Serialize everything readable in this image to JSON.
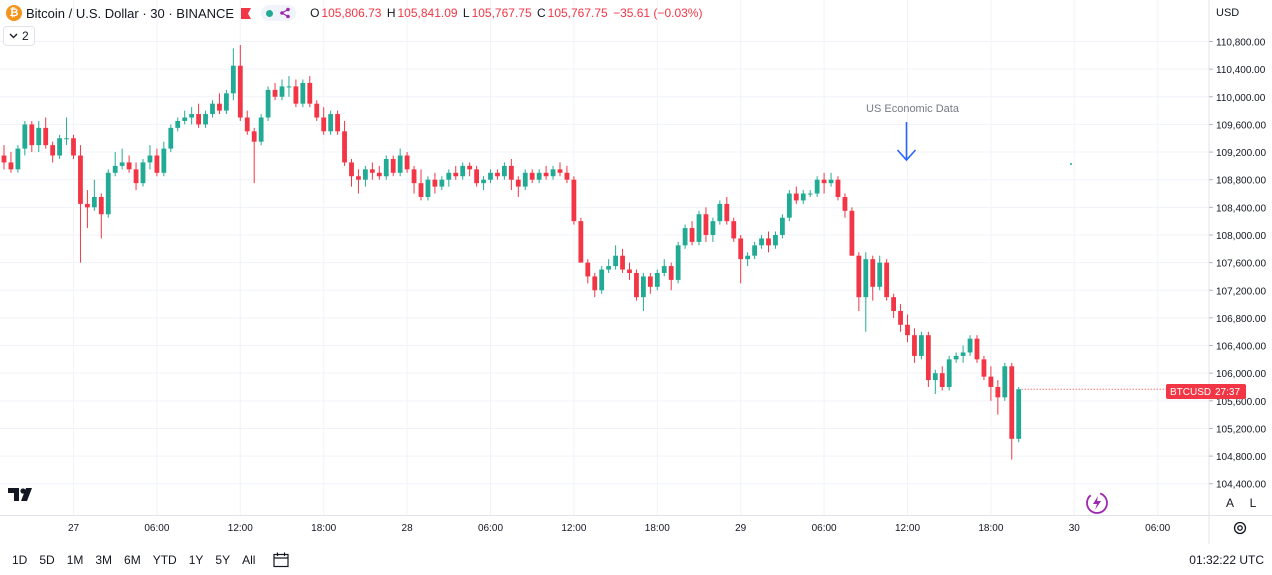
{
  "header": {
    "symbol_title": "Bitcoin / U.S. Dollar · 30 · BINANCE",
    "logo_glyph": "₿",
    "ohlc": {
      "open_key": "O",
      "open": "105,806.73",
      "high_key": "H",
      "high": "105,841.09",
      "low_key": "L",
      "low": "105,767.75",
      "close_key": "C",
      "close": "105,767.75",
      "change": "−35.61 (−0.03%)"
    },
    "indicator_toggle": "2",
    "currency": "USD"
  },
  "colors": {
    "up": "#22ab94",
    "down": "#f23645",
    "grid": "#f0f3fa",
    "annotation": "#2962ff",
    "annotation_text": "#787b86"
  },
  "price_tag": {
    "symbol": "BTCUSD",
    "countdown": "27:37"
  },
  "annotation": {
    "text": "US Economic Data"
  },
  "bottom_bar": {
    "ranges": [
      "1D",
      "5D",
      "1M",
      "3M",
      "6M",
      "YTD",
      "1Y",
      "5Y",
      "All"
    ],
    "clock": "01:32:22 UTC"
  },
  "scale_buttons": {
    "auto": "A",
    "log": "L"
  },
  "chart_data": {
    "type": "candlestick",
    "interval": "30m",
    "y_axis": {
      "min": 104400,
      "max": 111000,
      "ticks": [
        104400,
        104800,
        105200,
        105600,
        106000,
        106400,
        106800,
        107200,
        107600,
        108000,
        108400,
        108800,
        109200,
        109600,
        110000,
        110400,
        110800
      ],
      "tick_labels": [
        "104,400.00",
        "104,800.00",
        "105,200.00",
        "105,600.00",
        "106,000.00",
        "106,400.00",
        "106,800.00",
        "107,200.00",
        "107,600.00",
        "108,000.00",
        "108,400.00",
        "108,800.00",
        "109,200.00",
        "109,600.00",
        "110,000.00",
        "110,400.00",
        "110,800.00"
      ]
    },
    "x_axis": {
      "ticks": [
        {
          "label": "27",
          "index": 10
        },
        {
          "label": "06:00",
          "index": 22
        },
        {
          "label": "12:00",
          "index": 34
        },
        {
          "label": "18:00",
          "index": 46
        },
        {
          "label": "28",
          "index": 58
        },
        {
          "label": "06:00",
          "index": 70
        },
        {
          "label": "12:00",
          "index": 82
        },
        {
          "label": "18:00",
          "index": 94
        },
        {
          "label": "29",
          "index": 106
        },
        {
          "label": "06:00",
          "index": 118
        },
        {
          "label": "12:00",
          "index": 130
        },
        {
          "label": "18:00",
          "index": 142
        },
        {
          "label": "30",
          "index": 154
        },
        {
          "label": "06:00",
          "index": 166
        }
      ]
    },
    "annotation_index": 130,
    "last_price": 105767.75,
    "candles": [
      [
        109150,
        109300,
        108950,
        109050
      ],
      [
        109050,
        109200,
        108900,
        108950
      ],
      [
        108950,
        109300,
        108900,
        109250
      ],
      [
        109250,
        109650,
        109150,
        109600
      ],
      [
        109600,
        109650,
        109200,
        109300
      ],
      [
        109300,
        109650,
        109200,
        109550
      ],
      [
        109550,
        109700,
        109250,
        109300
      ],
      [
        109300,
        109350,
        109050,
        109150
      ],
      [
        109150,
        109450,
        109100,
        109400
      ],
      [
        109400,
        109700,
        109300,
        109400
      ],
      [
        109400,
        109450,
        109100,
        109150
      ],
      [
        109150,
        109300,
        107600,
        108450
      ],
      [
        108450,
        108650,
        108100,
        108400
      ],
      [
        108400,
        108800,
        108350,
        108550
      ],
      [
        108550,
        108600,
        107950,
        108300
      ],
      [
        108300,
        108950,
        108250,
        108900
      ],
      [
        108900,
        109200,
        108850,
        109000
      ],
      [
        109000,
        109250,
        108950,
        109050
      ],
      [
        109050,
        109150,
        108900,
        108950
      ],
      [
        108950,
        109050,
        108650,
        108750
      ],
      [
        108750,
        109100,
        108700,
        109050
      ],
      [
        109050,
        109300,
        108950,
        109150
      ],
      [
        109150,
        109250,
        108850,
        108900
      ],
      [
        108900,
        109350,
        108850,
        109250
      ],
      [
        109250,
        109600,
        109200,
        109550
      ],
      [
        109550,
        109700,
        109500,
        109650
      ],
      [
        109650,
        109800,
        109600,
        109700
      ],
      [
        109700,
        109850,
        109600,
        109750
      ],
      [
        109750,
        109900,
        109550,
        109600
      ],
      [
        109600,
        109800,
        109550,
        109750
      ],
      [
        109750,
        109950,
        109700,
        109900
      ],
      [
        109900,
        110050,
        109750,
        109800
      ],
      [
        109800,
        110100,
        109750,
        110050
      ],
      [
        110050,
        110700,
        109950,
        110450
      ],
      [
        110450,
        110750,
        109650,
        109700
      ],
      [
        109700,
        109800,
        109450,
        109500
      ],
      [
        109500,
        109550,
        108750,
        109350
      ],
      [
        109350,
        109750,
        109300,
        109700
      ],
      [
        109700,
        110150,
        109650,
        110100
      ],
      [
        110100,
        110200,
        109950,
        110000
      ],
      [
        110000,
        110250,
        109950,
        110150
      ],
      [
        110150,
        110300,
        110000,
        110150
      ],
      [
        110150,
        110250,
        109850,
        109900
      ],
      [
        109900,
        110250,
        109850,
        110200
      ],
      [
        110200,
        110300,
        109850,
        109900
      ],
      [
        109900,
        109950,
        109650,
        109700
      ],
      [
        109700,
        109850,
        109450,
        109500
      ],
      [
        109500,
        109800,
        109450,
        109750
      ],
      [
        109750,
        109800,
        109450,
        109500
      ],
      [
        109500,
        109650,
        109000,
        109050
      ],
      [
        109050,
        109100,
        108700,
        108850
      ],
      [
        108850,
        108950,
        108600,
        108800
      ],
      [
        108800,
        109000,
        108700,
        108950
      ],
      [
        108950,
        109050,
        108800,
        108900
      ],
      [
        108900,
        109000,
        108800,
        108850
      ],
      [
        108850,
        109150,
        108800,
        109100
      ],
      [
        109100,
        109150,
        108850,
        108900
      ],
      [
        108900,
        109250,
        108850,
        109150
      ],
      [
        109150,
        109200,
        108900,
        108950
      ],
      [
        108950,
        109000,
        108600,
        108750
      ],
      [
        108750,
        108950,
        108500,
        108550
      ],
      [
        108550,
        108850,
        108500,
        108800
      ],
      [
        108800,
        108900,
        108600,
        108700
      ],
      [
        108700,
        108850,
        108650,
        108800
      ],
      [
        108800,
        108950,
        108700,
        108900
      ],
      [
        108900,
        109000,
        108800,
        108850
      ],
      [
        108850,
        109050,
        108800,
        109000
      ],
      [
        109000,
        109050,
        108850,
        108950
      ],
      [
        108950,
        109000,
        108700,
        108750
      ],
      [
        108750,
        108850,
        108650,
        108800
      ],
      [
        108800,
        108950,
        108750,
        108900
      ],
      [
        108900,
        108950,
        108800,
        108850
      ],
      [
        108850,
        109050,
        108800,
        109000
      ],
      [
        109000,
        109100,
        108650,
        108800
      ],
      [
        108800,
        108850,
        108550,
        108700
      ],
      [
        108700,
        108950,
        108650,
        108900
      ],
      [
        108900,
        108950,
        108750,
        108800
      ],
      [
        108800,
        108950,
        108750,
        108900
      ],
      [
        108900,
        109000,
        108800,
        108850
      ],
      [
        108850,
        109000,
        108800,
        108950
      ],
      [
        108950,
        109050,
        108850,
        108900
      ],
      [
        108900,
        109000,
        108750,
        108800
      ],
      [
        108800,
        108850,
        108150,
        108200
      ],
      [
        108200,
        108250,
        107600,
        107600
      ],
      [
        107600,
        107650,
        107300,
        107400
      ],
      [
        107400,
        107450,
        107100,
        107200
      ],
      [
        107200,
        107550,
        107150,
        107500
      ],
      [
        107500,
        107650,
        107450,
        107550
      ],
      [
        107550,
        107850,
        107500,
        107700
      ],
      [
        107700,
        107800,
        107450,
        107500
      ],
      [
        107500,
        107600,
        107350,
        107450
      ],
      [
        107450,
        107500,
        107050,
        107100
      ],
      [
        107100,
        107450,
        106900,
        107400
      ],
      [
        107400,
        107450,
        107150,
        107250
      ],
      [
        107250,
        107500,
        107200,
        107450
      ],
      [
        107450,
        107650,
        107400,
        107550
      ],
      [
        107550,
        107600,
        107200,
        107350
      ],
      [
        107350,
        107900,
        107300,
        107850
      ],
      [
        107850,
        108150,
        107800,
        108100
      ],
      [
        108100,
        108200,
        107850,
        107900
      ],
      [
        107900,
        108350,
        107850,
        108300
      ],
      [
        108300,
        108400,
        107900,
        108000
      ],
      [
        108000,
        108250,
        107900,
        108200
      ],
      [
        108200,
        108500,
        108150,
        108450
      ],
      [
        108450,
        108550,
        108150,
        108200
      ],
      [
        108200,
        108250,
        107900,
        107950
      ],
      [
        107950,
        108000,
        107300,
        107650
      ],
      [
        107650,
        107750,
        107550,
        107700
      ],
      [
        107700,
        107900,
        107650,
        107850
      ],
      [
        107850,
        108000,
        107800,
        107950
      ],
      [
        107950,
        108050,
        107750,
        107850
      ],
      [
        107850,
        108050,
        107800,
        108000
      ],
      [
        108000,
        108300,
        107950,
        108250
      ],
      [
        108250,
        108650,
        108200,
        108600
      ],
      [
        108600,
        108700,
        108450,
        108500
      ],
      [
        108500,
        108650,
        108450,
        108600
      ],
      [
        108600,
        108650,
        108550,
        108600
      ],
      [
        108600,
        108850,
        108550,
        108800
      ],
      [
        108800,
        108900,
        108600,
        108750
      ],
      [
        108750,
        108900,
        108700,
        108800
      ],
      [
        108800,
        108850,
        108500,
        108550
      ],
      [
        108550,
        108600,
        108250,
        108350
      ],
      [
        108350,
        108400,
        107700,
        107700
      ],
      [
        107700,
        107750,
        106900,
        107100
      ],
      [
        107100,
        107750,
        106600,
        107650
      ],
      [
        107650,
        107700,
        107050,
        107250
      ],
      [
        107250,
        107700,
        107200,
        107600
      ],
      [
        107600,
        107650,
        107050,
        107100
      ],
      [
        107100,
        107150,
        106800,
        106900
      ],
      [
        106900,
        107000,
        106600,
        106700
      ],
      [
        106700,
        106850,
        106450,
        106550
      ],
      [
        106550,
        106650,
        106150,
        106250
      ],
      [
        106250,
        106600,
        106200,
        106550
      ],
      [
        106550,
        106600,
        105800,
        105900
      ],
      [
        105900,
        106050,
        105700,
        106000
      ],
      [
        106000,
        106100,
        105750,
        105800
      ],
      [
        105800,
        106250,
        105750,
        106200
      ],
      [
        106200,
        106300,
        106150,
        106250
      ],
      [
        106250,
        106400,
        106150,
        106300
      ],
      [
        106300,
        106550,
        106250,
        106500
      ],
      [
        106500,
        106550,
        106150,
        106200
      ],
      [
        106200,
        106250,
        105900,
        105950
      ],
      [
        105950,
        106100,
        105600,
        105800
      ],
      [
        105800,
        105900,
        105400,
        105650
      ],
      [
        105650,
        106150,
        105600,
        106100
      ],
      [
        106100,
        106150,
        104750,
        105050
      ],
      [
        105050,
        105800,
        105000,
        105768
      ]
    ]
  }
}
